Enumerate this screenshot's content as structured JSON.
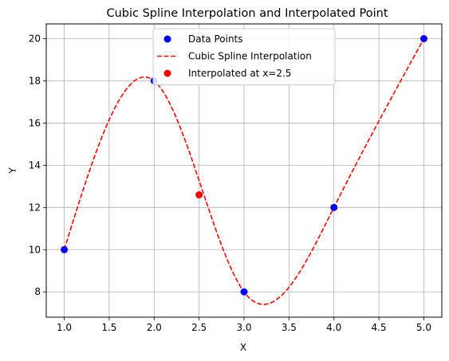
{
  "chart_data": {
    "type": "line",
    "title": "Cubic Spline Interpolation and Interpolated Point",
    "xlabel": "X",
    "ylabel": "Y",
    "xlim": [
      0.8,
      5.2
    ],
    "ylim": [
      6.8,
      20.7
    ],
    "xticks": [
      1.0,
      1.5,
      2.0,
      2.5,
      3.0,
      3.5,
      4.0,
      4.5,
      5.0
    ],
    "xtick_labels": [
      "1.0",
      "1.5",
      "2.0",
      "2.5",
      "3.0",
      "3.5",
      "4.0",
      "4.5",
      "5.0"
    ],
    "yticks": [
      8,
      10,
      12,
      14,
      16,
      18,
      20
    ],
    "ytick_labels": [
      "8",
      "10",
      "12",
      "14",
      "16",
      "18",
      "20"
    ],
    "grid": true,
    "legend_position": "top-center",
    "series": [
      {
        "name": "Data Points",
        "kind": "scatter",
        "color": "#0000ff",
        "x": [
          1,
          2,
          3,
          4,
          5
        ],
        "y": [
          10,
          18,
          8,
          12,
          20
        ]
      },
      {
        "name": "Cubic Spline Interpolation",
        "kind": "line",
        "style": "dashed",
        "color": "#ff0000",
        "x": [
          1,
          2,
          3,
          4,
          5
        ],
        "y": [
          10,
          18,
          8,
          12,
          20
        ]
      },
      {
        "name": "Interpolated at x=2.5",
        "kind": "scatter",
        "color": "#ff0000",
        "x": [
          2.5
        ],
        "y": [
          12.6
        ]
      }
    ]
  }
}
